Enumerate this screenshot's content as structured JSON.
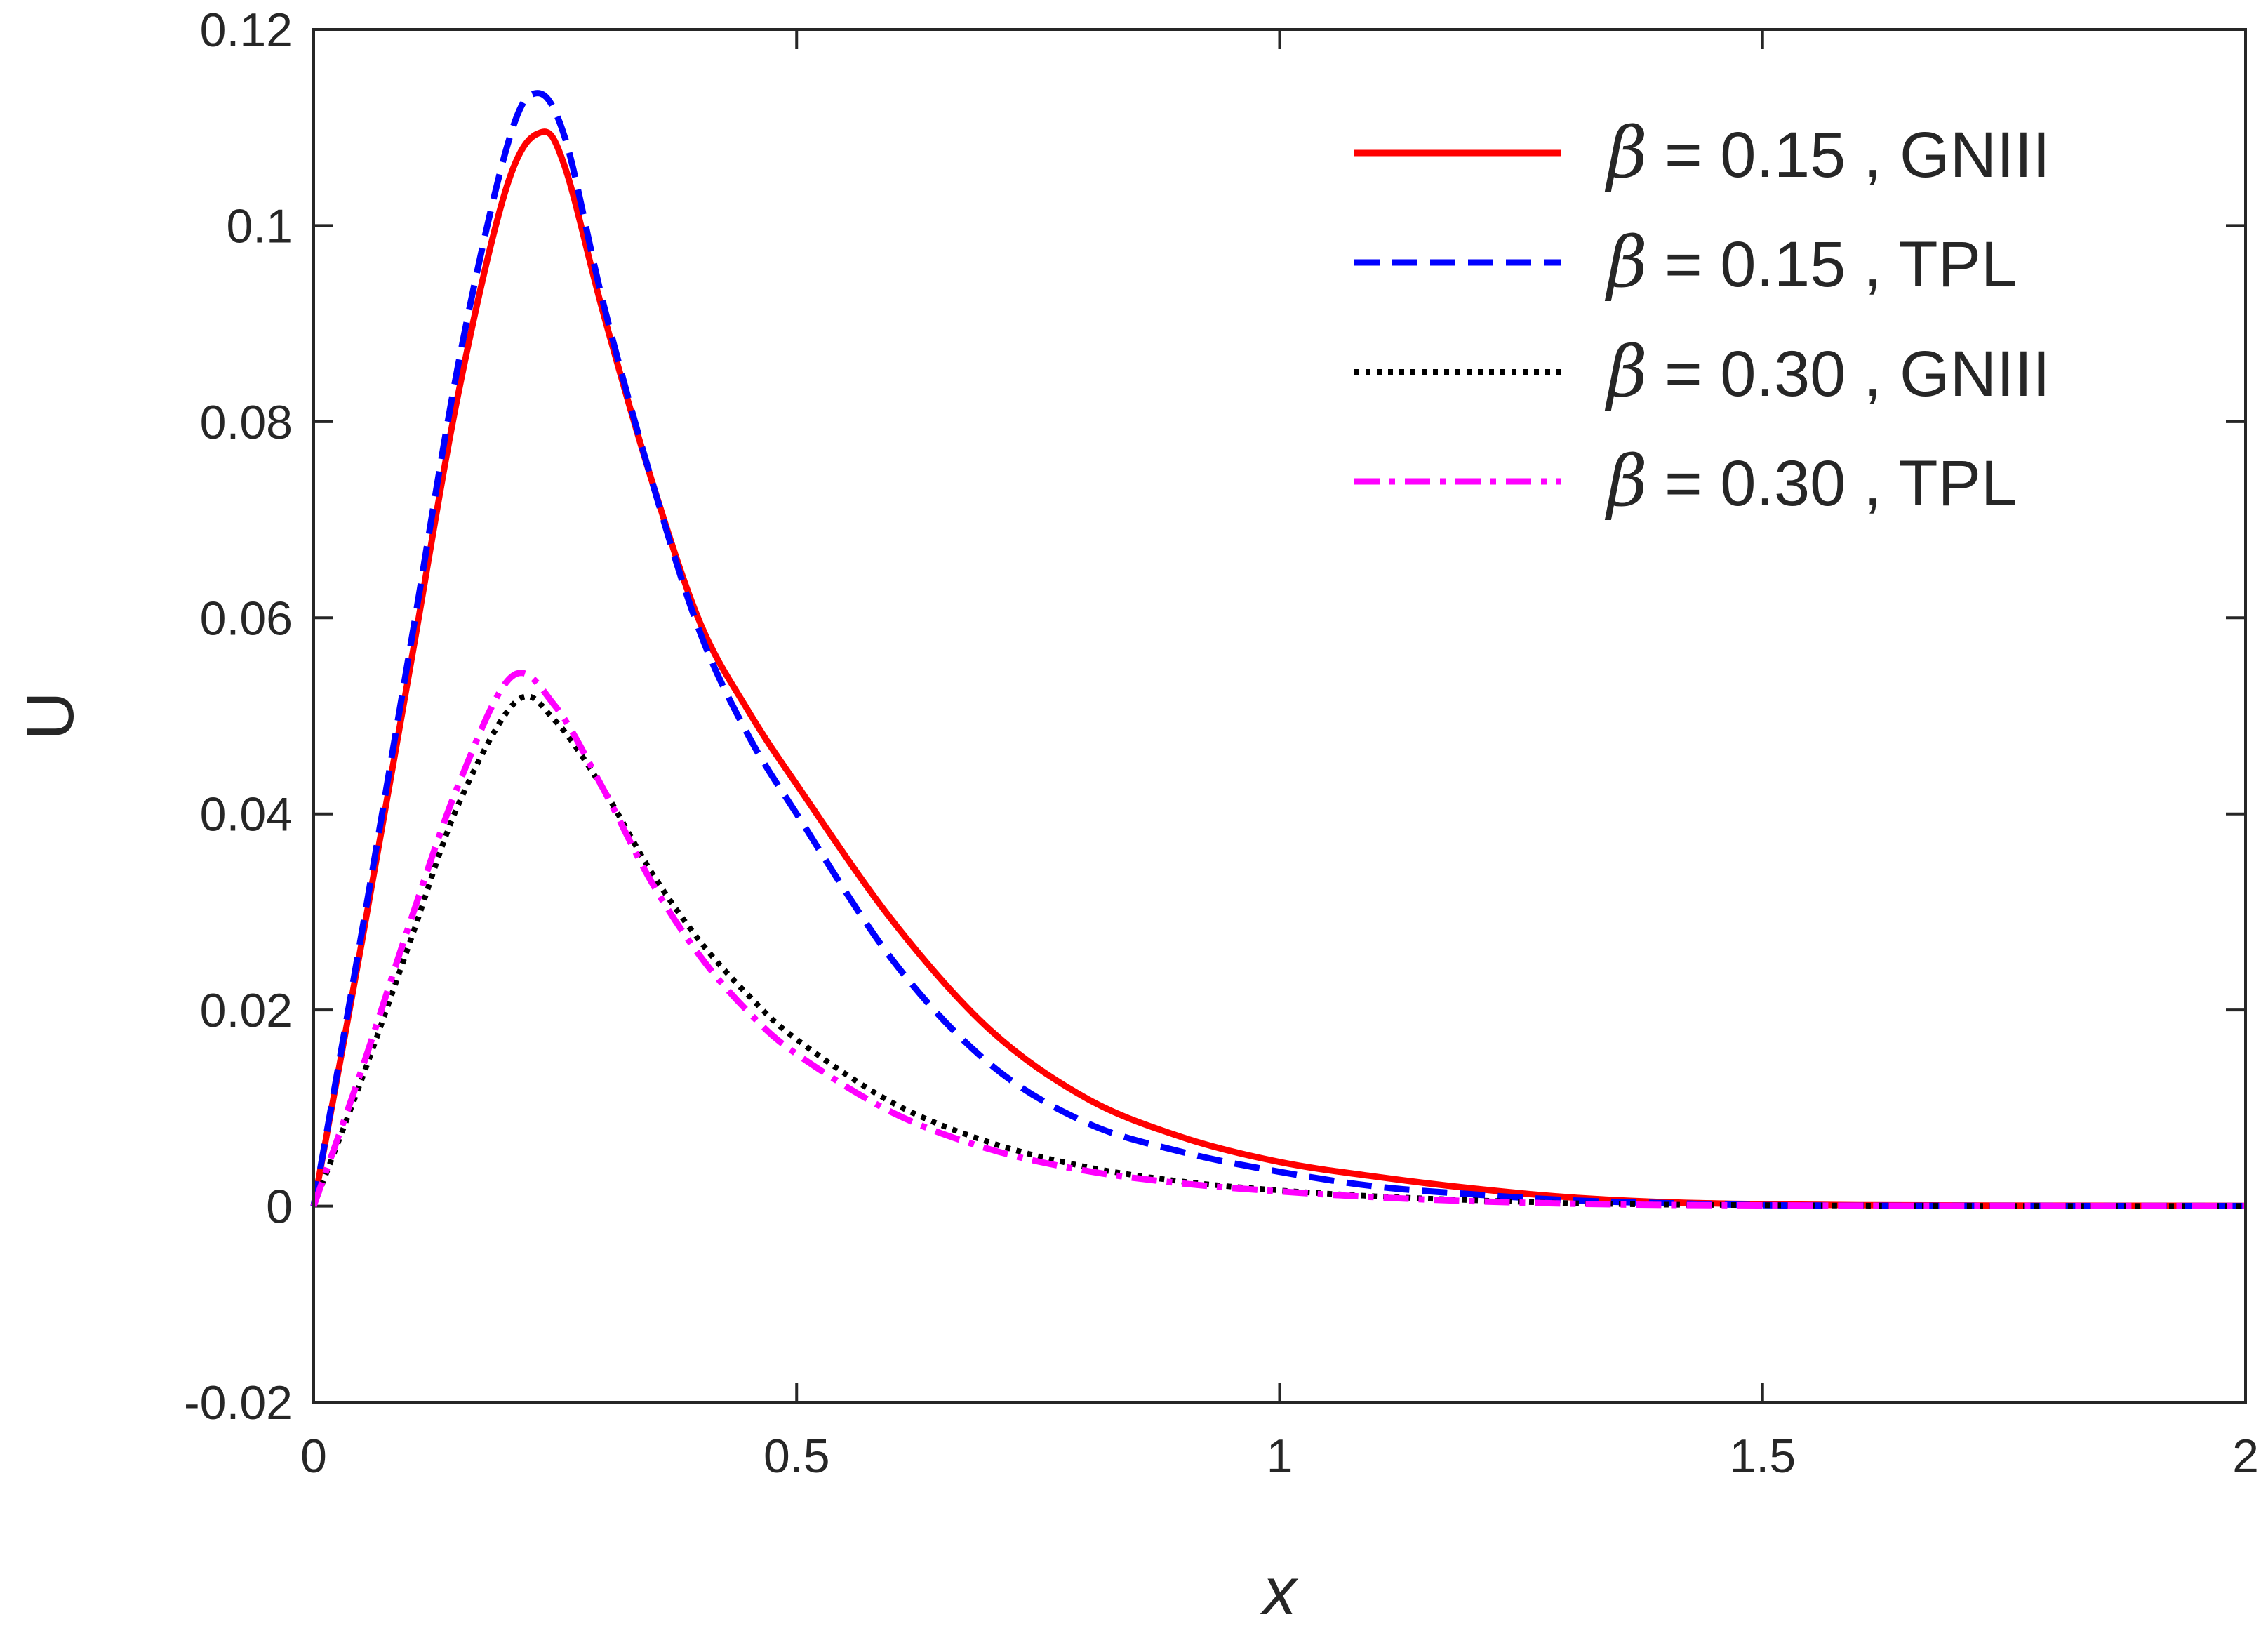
{
  "chart_data": {
    "type": "line",
    "title": "",
    "xlabel": "x",
    "ylabel": "U",
    "xlim": [
      0,
      2
    ],
    "ylim": [
      -0.02,
      0.12
    ],
    "xticks": [
      0,
      0.5,
      1,
      1.5,
      2
    ],
    "xtick_labels": [
      "0",
      "0.5",
      "1",
      "1.5",
      "2"
    ],
    "yticks": [
      -0.02,
      0,
      0.02,
      0.04,
      0.06,
      0.08,
      0.1,
      0.12
    ],
    "ytick_labels": [
      "-0.02",
      "0",
      "0.02",
      "0.04",
      "0.06",
      "0.08",
      "0.1",
      "0.12"
    ],
    "grid": false,
    "legend_position": "top-right",
    "series": [
      {
        "name": "β = 0.15 , GNIII",
        "legend_symbol": "β",
        "legend_label": "= 0.15 , GNIII",
        "color": "#ff0000",
        "style": "solid",
        "x": [
          0,
          0.05,
          0.1,
          0.15,
          0.2,
          0.235,
          0.26,
          0.3,
          0.35,
          0.4,
          0.45,
          0.5,
          0.6,
          0.7,
          0.8,
          0.9,
          1.0,
          1.1,
          1.2,
          1.3,
          1.4,
          1.5,
          1.6,
          1.8,
          2.0
        ],
        "y": [
          0,
          0.027,
          0.055,
          0.083,
          0.104,
          0.1095,
          0.106,
          0.091,
          0.074,
          0.0595,
          0.0505,
          0.043,
          0.029,
          0.018,
          0.011,
          0.007,
          0.0045,
          0.003,
          0.0018,
          0.0009,
          0.0004,
          0.0002,
          0.0001,
          5e-05,
          3e-05
        ]
      },
      {
        "name": "β = 0.15 , TPL",
        "legend_symbol": "β",
        "legend_label": "= 0.15 , TPL",
        "color": "#0000ff",
        "style": "dashed",
        "x": [
          0,
          0.05,
          0.1,
          0.15,
          0.2,
          0.23,
          0.26,
          0.3,
          0.35,
          0.4,
          0.45,
          0.5,
          0.6,
          0.7,
          0.8,
          0.9,
          1.0,
          1.1,
          1.2,
          1.3,
          1.4,
          1.5,
          1.6,
          1.8,
          2.0
        ],
        "y": [
          0,
          0.028,
          0.057,
          0.086,
          0.108,
          0.1135,
          0.109,
          0.092,
          0.074,
          0.0585,
          0.048,
          0.04,
          0.025,
          0.0145,
          0.0085,
          0.0055,
          0.0035,
          0.002,
          0.0012,
          0.0006,
          0.0003,
          0.0001,
          5e-05,
          2e-05,
          1e-05
        ]
      },
      {
        "name": "β = 0.30 , GNIII",
        "legend_symbol": "β",
        "legend_label": "= 0.30 , GNIII",
        "color": "#000000",
        "style": "dotted",
        "x": [
          0,
          0.05,
          0.1,
          0.15,
          0.21,
          0.25,
          0.3,
          0.35,
          0.4,
          0.45,
          0.5,
          0.6,
          0.7,
          0.8,
          0.9,
          1.0,
          1.1,
          1.2,
          1.3,
          1.4,
          1.5,
          1.6,
          1.8,
          2.0
        ],
        "y": [
          0,
          0.013,
          0.027,
          0.041,
          0.0515,
          0.0495,
          0.0425,
          0.034,
          0.027,
          0.0215,
          0.017,
          0.0105,
          0.0065,
          0.004,
          0.0025,
          0.0016,
          0.001,
          0.0006,
          0.0003,
          0.00015,
          0.0001,
          5e-05,
          2e-05,
          1e-05
        ]
      },
      {
        "name": "β = 0.30 , TPL",
        "legend_symbol": "β",
        "legend_label": "= 0.30 , TPL",
        "color": "#ff00ff",
        "style": "dashdot",
        "x": [
          0,
          0.05,
          0.1,
          0.15,
          0.205,
          0.25,
          0.3,
          0.35,
          0.4,
          0.45,
          0.5,
          0.6,
          0.7,
          0.8,
          0.9,
          1.0,
          1.1,
          1.2,
          1.3,
          1.4,
          1.5,
          1.6,
          1.8,
          2.0
        ],
        "y": [
          0,
          0.014,
          0.029,
          0.043,
          0.054,
          0.051,
          0.0425,
          0.033,
          0.0255,
          0.0198,
          0.0155,
          0.0095,
          0.0058,
          0.0036,
          0.0023,
          0.0015,
          0.0009,
          0.0005,
          0.00025,
          0.00012,
          8e-05,
          4e-05,
          2e-05,
          1e-05
        ]
      }
    ]
  }
}
